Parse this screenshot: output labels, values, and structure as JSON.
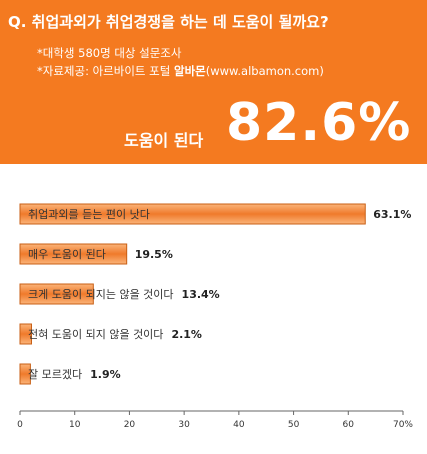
{
  "header": {
    "title": "Q. 취업과외가 취업경쟁을 하는 데 도움이 될까요?",
    "note_survey": "*대학생 580명 대상 설문조사",
    "note_source_prefix": "*자료제공: 아르바이트 포털 ",
    "note_source_brand": "알바몬",
    "note_source_url": "(www.albamon.com)",
    "highlight_label": "도움이 된다",
    "highlight_value": "82.6%"
  },
  "colors": {
    "header_bg": "#f47a20",
    "bar_light": "#fbb47a",
    "bar_dark": "#ef7a2b",
    "bar_border": "#c85f15",
    "axis": "#666666"
  },
  "chart_data": {
    "type": "bar",
    "orientation": "horizontal",
    "categories": [
      "취업과외를 듣는 편이 낫다",
      "매우 도움이 된다",
      "크게 도움이 되지는 않을 것이다",
      "전혀 도움이 되지 않을 것이다",
      "잘 모르겠다"
    ],
    "values": [
      63.1,
      19.5,
      13.4,
      2.1,
      1.9
    ],
    "value_labels": [
      "63.1%",
      "19.5%",
      "13.4%",
      "2.1%",
      "1.9%"
    ],
    "xlim": [
      0,
      70
    ],
    "ticks": [
      0,
      10,
      20,
      30,
      40,
      50,
      60,
      70
    ],
    "tick_labels": [
      "0",
      "10",
      "20",
      "30",
      "40",
      "50",
      "60",
      "70%"
    ],
    "grid": false
  }
}
